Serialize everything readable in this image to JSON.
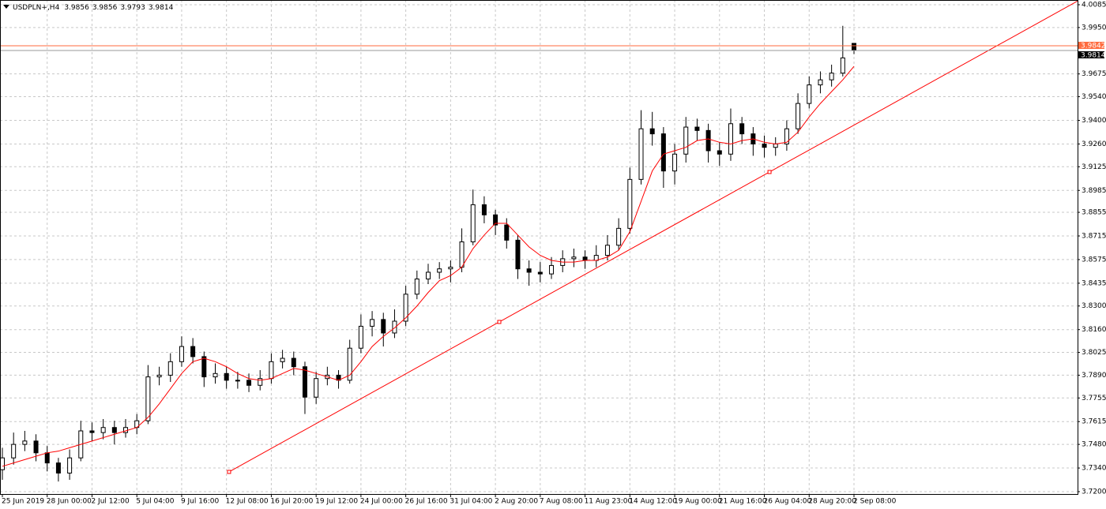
{
  "chart_data": {
    "type": "candlestick",
    "symbol": "USDPLN+,H4",
    "categories": [
      "25 Jun 2019",
      null,
      null,
      null,
      "28 Jun 00:00",
      null,
      null,
      null,
      "2 Jul 12:00",
      null,
      null,
      null,
      "5 Jul 04:00",
      null,
      null,
      null,
      "9 Jul 16:00",
      null,
      null,
      null,
      "12 Jul 08:00",
      null,
      null,
      null,
      "16 Jul 20:00",
      null,
      null,
      null,
      "19 Jul 12:00",
      null,
      null,
      null,
      "24 Jul 00:00",
      null,
      null,
      null,
      "26 Jul 16:00",
      null,
      null,
      null,
      "31 Jul 04:00",
      null,
      null,
      null,
      "2 Aug 20:00",
      null,
      null,
      null,
      "7 Aug 08:00",
      null,
      null,
      null,
      "11 Aug 23:00",
      null,
      null,
      null,
      "14 Aug 12:00",
      null,
      null,
      null,
      "19 Aug 00:00",
      null,
      null,
      null,
      "21 Aug 16:00",
      null,
      null,
      null,
      "26 Aug 04:00",
      null,
      null,
      null,
      "28 Aug 20:00",
      null,
      null,
      null,
      "2 Sep 08:00"
    ],
    "open": [
      3.733,
      3.74,
      3.748,
      3.75,
      3.743,
      3.737,
      3.731,
      3.74,
      3.756,
      3.755,
      3.758,
      3.755,
      3.758,
      3.762,
      3.788,
      3.789,
      3.797,
      3.806,
      3.8,
      3.788,
      3.79,
      3.786,
      3.786,
      3.783,
      3.787,
      3.797,
      3.799,
      3.794,
      3.776,
      3.787,
      3.789,
      3.786,
      3.805,
      3.818,
      3.822,
      3.814,
      3.821,
      3.837,
      3.846,
      3.85,
      3.852,
      3.853,
      3.868,
      3.89,
      3.884,
      3.878,
      3.869,
      3.852,
      3.85,
      3.849,
      3.854,
      3.858,
      3.859,
      3.857,
      3.86,
      3.866,
      3.876,
      3.905,
      3.935,
      3.932,
      3.91,
      3.92,
      3.936,
      3.934,
      3.922,
      3.92,
      3.938,
      3.932,
      3.926,
      3.924,
      3.926,
      3.935,
      3.95,
      3.961,
      3.964,
      3.968,
      3.9856
    ],
    "high": [
      3.746,
      3.755,
      3.756,
      3.754,
      3.747,
      3.74,
      3.745,
      3.762,
      3.761,
      3.763,
      3.762,
      3.763,
      3.766,
      3.795,
      3.794,
      3.802,
      3.812,
      3.811,
      3.803,
      3.796,
      3.794,
      3.791,
      3.79,
      3.792,
      3.802,
      3.804,
      3.803,
      3.797,
      3.791,
      3.794,
      3.792,
      3.81,
      3.825,
      3.827,
      3.826,
      3.828,
      3.842,
      3.851,
      3.855,
      3.856,
      3.857,
      3.876,
      3.899,
      3.895,
      3.887,
      3.882,
      3.872,
      3.857,
      3.856,
      3.859,
      3.863,
      3.864,
      3.863,
      3.866,
      3.872,
      3.882,
      3.912,
      3.946,
      3.945,
      3.936,
      3.926,
      3.942,
      3.941,
      3.938,
      3.927,
      3.947,
      3.942,
      3.936,
      3.931,
      3.93,
      3.94,
      3.956,
      3.966,
      3.969,
      3.973,
      3.996,
      3.9856
    ],
    "low": [
      3.727,
      3.736,
      3.744,
      3.738,
      3.732,
      3.726,
      3.727,
      3.738,
      3.75,
      3.751,
      3.748,
      3.752,
      3.754,
      3.76,
      3.783,
      3.785,
      3.794,
      3.796,
      3.782,
      3.784,
      3.781,
      3.781,
      3.779,
      3.78,
      3.784,
      3.793,
      3.789,
      3.766,
      3.772,
      3.783,
      3.781,
      3.784,
      3.802,
      3.812,
      3.806,
      3.811,
      3.818,
      3.834,
      3.843,
      3.846,
      3.844,
      3.85,
      3.866,
      3.879,
      3.872,
      3.864,
      3.846,
      3.842,
      3.844,
      3.846,
      3.85,
      3.853,
      3.852,
      3.853,
      3.857,
      3.863,
      3.873,
      3.902,
      3.925,
      3.9,
      3.902,
      3.915,
      3.928,
      3.915,
      3.913,
      3.916,
      3.926,
      3.919,
      3.918,
      3.919,
      3.922,
      3.932,
      3.947,
      3.956,
      3.96,
      3.966,
      3.9793
    ],
    "close": [
      3.74,
      3.748,
      3.75,
      3.743,
      3.737,
      3.731,
      3.74,
      3.756,
      3.755,
      3.758,
      3.755,
      3.758,
      3.762,
      3.788,
      3.789,
      3.797,
      3.806,
      3.8,
      3.788,
      3.79,
      3.786,
      3.786,
      3.783,
      3.787,
      3.797,
      3.799,
      3.794,
      3.776,
      3.787,
      3.789,
      3.786,
      3.805,
      3.818,
      3.822,
      3.814,
      3.821,
      3.837,
      3.846,
      3.85,
      3.852,
      3.853,
      3.868,
      3.89,
      3.884,
      3.878,
      3.869,
      3.852,
      3.85,
      3.849,
      3.854,
      3.858,
      3.859,
      3.857,
      3.86,
      3.866,
      3.876,
      3.905,
      3.935,
      3.932,
      3.91,
      3.92,
      3.936,
      3.934,
      3.922,
      3.92,
      3.938,
      3.932,
      3.926,
      3.924,
      3.926,
      3.935,
      3.95,
      3.961,
      3.964,
      3.968,
      3.977,
      3.9814
    ],
    "ma": [
      3.735,
      3.737,
      3.739,
      3.741,
      3.743,
      3.744,
      3.746,
      3.748,
      3.75,
      3.752,
      3.754,
      3.756,
      3.758,
      3.764,
      3.772,
      3.781,
      3.79,
      3.797,
      3.799,
      3.797,
      3.794,
      3.79,
      3.787,
      3.786,
      3.787,
      3.79,
      3.793,
      3.792,
      3.79,
      3.788,
      3.786,
      3.789,
      3.797,
      3.806,
      3.812,
      3.817,
      3.823,
      3.83,
      3.838,
      3.845,
      3.848,
      3.853,
      3.864,
      3.872,
      3.879,
      3.879,
      3.872,
      3.865,
      3.86,
      3.857,
      3.856,
      3.856,
      3.857,
      3.857,
      3.859,
      3.863,
      3.874,
      3.892,
      3.91,
      3.92,
      3.922,
      3.924,
      3.928,
      3.929,
      3.927,
      3.926,
      3.928,
      3.929,
      3.927,
      3.926,
      3.927,
      3.933,
      3.942,
      3.95,
      3.957,
      3.964,
      3.972
    ],
    "ma_color": "#ff0000",
    "trendline": {
      "x": [
        20.23,
        68.46
      ],
      "values": [
        3.7317,
        3.9094
      ],
      "color": "#ff0000"
    },
    "ask_line": {
      "value": 3.9842,
      "color": "#ff6a3d"
    },
    "bid_color": "#999999",
    "up_color": "#ffffff",
    "down_color": "#000000",
    "ylim": [
      3.72,
      4.0085
    ],
    "yticks": [
      4.0085,
      {
        "value": 3.995,
        "label": "3.9950"
      },
      3.9675,
      {
        "value": 3.954,
        "label": "3.9540"
      },
      {
        "value": 3.94,
        "label": "3.9400"
      },
      {
        "value": 3.926,
        "label": "3.9260"
      },
      3.9125,
      3.8985,
      3.8855,
      3.8715,
      3.8575,
      3.8435,
      {
        "value": 3.83,
        "label": "3.8300"
      },
      {
        "value": 3.816,
        "label": "3.8160"
      },
      3.8025,
      {
        "value": 3.789,
        "label": "3.7890"
      },
      3.7755,
      3.7615,
      {
        "value": 3.748,
        "label": "3.7480"
      },
      {
        "value": 3.734,
        "label": "3.7340"
      },
      {
        "value": 3.72,
        "label": "3.7200"
      }
    ],
    "grid": true
  }
}
